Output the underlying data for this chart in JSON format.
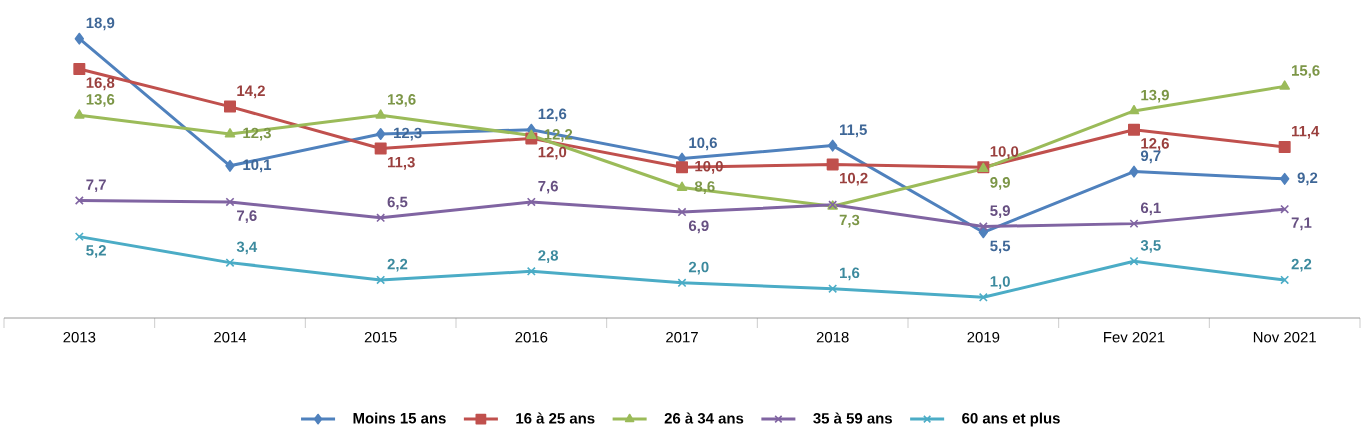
{
  "chart_data": {
    "type": "line",
    "categories": [
      "2013",
      "2014",
      "2015",
      "2016",
      "2017",
      "2018",
      "2019",
      "Fev 2021",
      "Nov 2021"
    ],
    "legend": "bottom",
    "tick_labels": "x",
    "series": [
      {
        "name": "Moins 15 ans",
        "color": "#4f81bd",
        "marker": "diamond",
        "values": [
          18.9,
          10.1,
          12.3,
          12.6,
          10.6,
          11.5,
          5.5,
          9.7,
          9.2
        ],
        "value_labels": [
          "18,9",
          "10,1",
          "12,3",
          "12,6",
          "10,6",
          "11,5",
          "5,5",
          "9,7",
          "9,2"
        ]
      },
      {
        "name": "16 à 25 ans",
        "color": "#c0504d",
        "marker": "square",
        "values": [
          16.8,
          14.2,
          11.3,
          12.0,
          10.0,
          10.2,
          10.0,
          12.6,
          11.4
        ],
        "value_labels": [
          "16,8",
          "14,2",
          "11,3",
          "12,0",
          "10,0",
          "10,2",
          "10,0",
          "12,6",
          "11,4"
        ]
      },
      {
        "name": "26 à 34 ans",
        "color": "#9bbb59",
        "marker": "triangle",
        "values": [
          13.6,
          12.3,
          13.6,
          12.2,
          8.6,
          7.3,
          9.9,
          13.9,
          15.6
        ],
        "value_labels": [
          "13,6",
          "12,3",
          "13,6",
          "12,2",
          "8,6",
          "7,3",
          "9,9",
          "13,9",
          "15,6"
        ]
      },
      {
        "name": "35 à 59 ans",
        "color": "#8064a2",
        "marker": "cross",
        "values": [
          7.7,
          7.6,
          6.5,
          7.6,
          6.9,
          7.4,
          5.9,
          6.1,
          7.1
        ],
        "value_labels": [
          "7,7",
          "7,6",
          "6,5",
          "7,6",
          "6,9",
          null,
          "5,9",
          "6,1",
          "7,1"
        ]
      },
      {
        "name": "60 ans et plus",
        "color": "#4bacc6",
        "marker": "cross",
        "values": [
          5.2,
          3.4,
          2.2,
          2.8,
          2.0,
          1.6,
          1.0,
          3.5,
          2.2
        ],
        "value_labels": [
          "5,2",
          "3,4",
          "2,2",
          "2,8",
          "2,0",
          "1,6",
          "1,0",
          "3,5",
          "2,2"
        ]
      }
    ]
  }
}
